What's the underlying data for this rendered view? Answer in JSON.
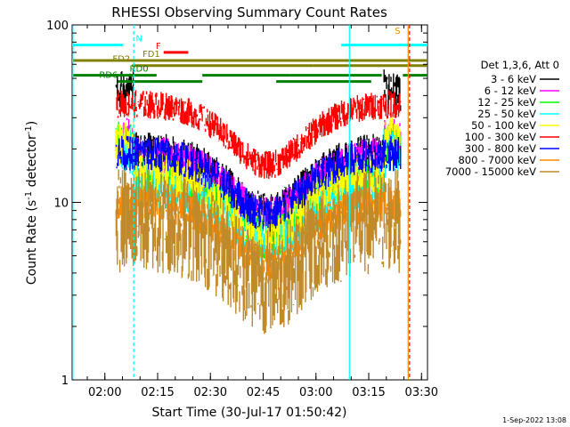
{
  "chart_data": {
    "type": "line",
    "title": "RHESSI Observing Summary Count Rates",
    "xlabel": "Start Time (30-Jul-17 01:50:42)",
    "ylabel": "Count Rate (s⁻¹ detector⁻¹)",
    "ylabel_main": "Count Rate (s",
    "ylabel_sup1": "-1",
    "ylabel_mid": " detector",
    "ylabel_sup2": "-1",
    "ylabel_end": ")",
    "yscale": "log",
    "ylim": [
      1,
      100
    ],
    "xlim_minutes": [
      0,
      101
    ],
    "x_start_minute_offset": 110.7,
    "x_ticks": [
      "02:00",
      "02:15",
      "02:30",
      "02:45",
      "03:00",
      "03:15",
      "03:30"
    ],
    "x_tick_minutes": [
      120,
      135,
      150,
      165,
      180,
      195,
      210
    ],
    "y_ticks": [
      "1",
      "10",
      "100"
    ],
    "y_tick_values": [
      1,
      10,
      100
    ],
    "date_stamp": "1-Sep-2022 13:08",
    "legend_header": "Det 1,3,6, Att 0",
    "series": [
      {
        "name": "3 - 6 keV",
        "color": "#000000",
        "base": 20,
        "top_plateau": 45,
        "noise": 0.1
      },
      {
        "name": "6 - 12 keV",
        "color": "#ff00ff",
        "base": 19,
        "top_plateau": 24,
        "noise": 0.1
      },
      {
        "name": "12 - 25 keV",
        "color": "#00ff00",
        "base": 14,
        "top_plateau": 22,
        "noise": 0.12
      },
      {
        "name": "25 - 50 keV",
        "color": "#00ffff",
        "base": 13,
        "top_plateau": 20,
        "noise": 0.14
      },
      {
        "name": "50 - 100 keV",
        "color": "#ffff00",
        "base": 15,
        "top_plateau": 23,
        "noise": 0.12
      },
      {
        "name": "100 - 300 keV",
        "color": "#ff0000",
        "base": 36,
        "top_plateau": 36,
        "noise": 0.08
      },
      {
        "name": "300 - 800 keV",
        "color": "#0000ff",
        "base": 19,
        "top_plateau": 19,
        "noise": 0.1
      },
      {
        "name": "800 - 7000 keV",
        "color": "#ff8800",
        "base": 10,
        "top_plateau": 10,
        "noise": 0.1
      },
      {
        "name": "7000 - 15000 keV",
        "color": "#c08a2a",
        "base": 8,
        "top_plateau": 8,
        "noise": 0.3
      }
    ],
    "data_window_minutes": [
      12.5,
      93.5
    ],
    "dip_center_minute": 55.5,
    "dip_factor": 0.45,
    "flags": [
      {
        "label": "N",
        "color": "#00ffff",
        "y_value": 77,
        "segments": [
          [
            0,
            14.5
          ],
          [
            76.5,
            101
          ]
        ]
      },
      {
        "label": "S",
        "color": "#ff8800",
        "y_value": 85,
        "segments": []
      },
      {
        "label": "F",
        "color": "#ff0000",
        "y_value": 70,
        "segments": [
          [
            26,
            33
          ]
        ]
      },
      {
        "label": "FD1",
        "color": "#808000",
        "y_value": 63,
        "segments": [
          [
            0,
            101
          ]
        ]
      },
      {
        "label": "FD2",
        "color": "#808000",
        "y_value": 59,
        "segments": [
          [
            17,
            68.5
          ],
          [
            68.5,
            101
          ]
        ]
      },
      {
        "label": "RD0",
        "color": "#008000",
        "y_value": 52,
        "segments": [
          [
            0,
            24
          ],
          [
            37,
            62
          ],
          [
            62,
            88
          ],
          [
            94,
            101
          ]
        ]
      },
      {
        "label": "RD6",
        "color": "#008000",
        "y_value": 48,
        "segments": [
          [
            13,
            37
          ],
          [
            58,
            85
          ]
        ]
      }
    ],
    "vertical_lines": [
      {
        "minute": 0.2,
        "color": "#00ffff",
        "style": "solid"
      },
      {
        "minute": 17.5,
        "color": "#00ffff",
        "style": "dashed"
      },
      {
        "minute": 78.8,
        "color": "#00ffff",
        "style": "solid"
      },
      {
        "minute": 95.5,
        "color": "#ff8800",
        "style": "solid"
      },
      {
        "minute": 95.9,
        "color": "#ff0000",
        "style": "dashed"
      }
    ]
  }
}
